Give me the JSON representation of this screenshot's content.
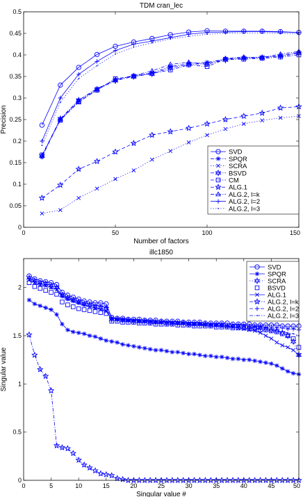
{
  "chart_data": [
    {
      "type": "line",
      "title": "TDM cran_lec",
      "xlabel": "Number of factors",
      "ylabel": "Precision",
      "xlim": [
        0,
        150
      ],
      "ylim": [
        0,
        0.5
      ],
      "xticks": [
        0,
        50,
        100,
        150
      ],
      "yticks": [
        0,
        0.05,
        0.1,
        0.15,
        0.2,
        0.25,
        0.3,
        0.35,
        0.4,
        0.45,
        0.5
      ],
      "xtick_labels": [
        "0",
        "50",
        "100",
        "150"
      ],
      "ytick_labels": [
        "0",
        "0.05",
        "0.1",
        "0.15",
        "0.2",
        "0.25",
        "0.3",
        "0.35",
        "0.4",
        "0.45",
        "0.5"
      ],
      "grid": false,
      "legend_position": "lower-right",
      "color": "#0000ff",
      "x": [
        10,
        20,
        30,
        40,
        50,
        60,
        70,
        80,
        90,
        100,
        110,
        120,
        130,
        140,
        150
      ],
      "series": [
        {
          "name": "SVD",
          "marker": "circle",
          "dash": "solid",
          "values": [
            0.237,
            0.33,
            0.371,
            0.401,
            0.42,
            0.43,
            0.438,
            0.447,
            0.453,
            0.456,
            0.455,
            0.455,
            0.455,
            0.454,
            0.452
          ]
        },
        {
          "name": "SPQR",
          "marker": "star",
          "dash": "dashdot",
          "values": [
            0.163,
            0.25,
            0.295,
            0.322,
            0.342,
            0.352,
            0.358,
            0.373,
            0.38,
            0.383,
            0.39,
            0.394,
            0.395,
            0.398,
            0.406
          ]
        },
        {
          "name": "SCRA",
          "marker": "x",
          "dash": "dotted",
          "values": [
            0.032,
            0.04,
            0.068,
            0.09,
            0.112,
            0.132,
            0.157,
            0.177,
            0.197,
            0.214,
            0.228,
            0.24,
            0.248,
            0.254,
            0.258
          ]
        },
        {
          "name": "BSVD",
          "marker": "hexstar",
          "dash": "dashdot",
          "values": [
            0.165,
            0.252,
            0.295,
            0.32,
            0.34,
            0.35,
            0.356,
            0.37,
            0.378,
            0.38,
            0.388,
            0.392,
            0.394,
            0.397,
            0.404
          ]
        },
        {
          "name": "CM",
          "marker": "square",
          "dash": "dashdot",
          "values": [
            0.168,
            0.248,
            0.292,
            0.318,
            0.345,
            0.35,
            0.357,
            0.365,
            0.377,
            0.373,
            0.39,
            0.39,
            0.392,
            0.395,
            0.4
          ]
        },
        {
          "name": "ALG.1",
          "marker": "pentagram",
          "dash": "dashed",
          "values": [
            0.068,
            0.098,
            0.135,
            0.153,
            0.175,
            0.195,
            0.214,
            0.222,
            0.23,
            0.24,
            0.25,
            0.258,
            0.265,
            0.277,
            0.28
          ]
        },
        {
          "name": "ALG.2, l=k",
          "marker": "triangle",
          "dash": "dashdot",
          "values": [
            0.167,
            0.25,
            0.29,
            0.32,
            0.343,
            0.352,
            0.363,
            0.378,
            0.383,
            0.378,
            0.392,
            0.395,
            0.394,
            0.402,
            0.408
          ]
        },
        {
          "name": "ALG.2, l=2",
          "marker": "plus",
          "dash": "solid",
          "values": [
            0.2,
            0.3,
            0.355,
            0.385,
            0.41,
            0.425,
            0.432,
            0.44,
            0.448,
            0.452,
            0.453,
            0.454,
            0.454,
            0.453,
            0.452
          ]
        },
        {
          "name": "ALG.2, l=3",
          "marker": "dot",
          "dash": "dotted",
          "values": [
            0.19,
            0.29,
            0.345,
            0.375,
            0.402,
            0.418,
            0.428,
            0.437,
            0.443,
            0.448,
            0.45,
            0.451,
            0.451,
            0.45,
            0.449
          ]
        }
      ]
    },
    {
      "type": "line",
      "title": "illc1850",
      "xlabel": "Singular value #",
      "ylabel": "Singular value",
      "xlim": [
        0,
        50
      ],
      "ylim": [
        0,
        2.3
      ],
      "xticks": [
        0,
        5,
        10,
        15,
        20,
        25,
        30,
        35,
        40,
        45,
        50
      ],
      "yticks": [
        0,
        0.5,
        1,
        1.5,
        2
      ],
      "xtick_labels": [
        "0",
        "5",
        "10",
        "15",
        "20",
        "25",
        "30",
        "35",
        "40",
        "45",
        "50"
      ],
      "ytick_labels": [
        "0",
        "0.5",
        "1",
        "1.5",
        "2"
      ],
      "grid": false,
      "legend_position": "top-right",
      "color": "#0000ff",
      "x": [
        1,
        2,
        3,
        4,
        5,
        6,
        7,
        8,
        9,
        10,
        11,
        12,
        13,
        14,
        15,
        16,
        17,
        18,
        19,
        20,
        21,
        22,
        23,
        24,
        25,
        26,
        27,
        28,
        29,
        30,
        31,
        32,
        33,
        34,
        35,
        36,
        37,
        38,
        39,
        40,
        41,
        42,
        43,
        44,
        45,
        46,
        47,
        48,
        49,
        50
      ],
      "series": [
        {
          "name": "SVD",
          "marker": "circle",
          "dash": "solid",
          "values": [
            2.12,
            2.09,
            2.07,
            2.06,
            2.05,
            2.03,
            1.95,
            1.92,
            1.9,
            1.88,
            1.86,
            1.85,
            1.84,
            1.84,
            1.83,
            1.69,
            1.68,
            1.68,
            1.67,
            1.67,
            1.67,
            1.66,
            1.66,
            1.66,
            1.65,
            1.65,
            1.65,
            1.65,
            1.64,
            1.64,
            1.64,
            1.64,
            1.63,
            1.63,
            1.63,
            1.63,
            1.63,
            1.62,
            1.62,
            1.62,
            1.62,
            1.61,
            1.61,
            1.61,
            1.61,
            1.61,
            1.6,
            1.6,
            1.6,
            1.6
          ]
        },
        {
          "name": "SPQR",
          "marker": "star",
          "dash": "solid",
          "values": [
            1.87,
            1.83,
            1.81,
            1.79,
            1.77,
            1.72,
            1.62,
            1.56,
            1.54,
            1.53,
            1.52,
            1.5,
            1.49,
            1.47,
            1.45,
            1.44,
            1.43,
            1.41,
            1.4,
            1.39,
            1.38,
            1.37,
            1.36,
            1.35,
            1.35,
            1.34,
            1.33,
            1.33,
            1.32,
            1.31,
            1.31,
            1.3,
            1.29,
            1.29,
            1.28,
            1.28,
            1.27,
            1.26,
            1.26,
            1.25,
            1.25,
            1.24,
            1.23,
            1.22,
            1.21,
            1.19,
            1.16,
            1.13,
            1.11,
            1.1
          ]
        },
        {
          "name": "SCRA",
          "marker": "hexstar",
          "dash": "dotted",
          "values": [
            2.1,
            2.07,
            2.05,
            2.04,
            2.02,
            2.0,
            1.92,
            1.89,
            1.87,
            1.85,
            1.83,
            1.82,
            1.8,
            1.79,
            1.78,
            1.67,
            1.67,
            1.66,
            1.66,
            1.65,
            1.65,
            1.65,
            1.64,
            1.64,
            1.64,
            1.63,
            1.63,
            1.63,
            1.63,
            1.62,
            1.62,
            1.62,
            1.62,
            1.61,
            1.61,
            1.61,
            1.6,
            1.6,
            1.6,
            1.59,
            1.59,
            1.58,
            1.58,
            1.57,
            1.56,
            1.55,
            1.53,
            1.5,
            1.44,
            1.3
          ]
        },
        {
          "name": "BSVD",
          "marker": "square",
          "dash": "none",
          "values": [
            2.05,
            2.01,
            1.99,
            1.97,
            1.95,
            1.93,
            1.85,
            1.82,
            1.8,
            1.78,
            1.77,
            1.76,
            1.75,
            1.74,
            1.73,
            1.65,
            1.65,
            1.64,
            1.64,
            1.64,
            1.63,
            1.63,
            1.63,
            1.62,
            1.62,
            1.62,
            1.62,
            1.61,
            1.61,
            1.61,
            1.6,
            1.6,
            1.6,
            1.6,
            1.59,
            1.59,
            1.59,
            1.58,
            1.58,
            1.58,
            1.57,
            1.57,
            1.56,
            1.56,
            1.55,
            1.54,
            1.52,
            1.5,
            1.47,
            1.38
          ]
        },
        {
          "name": "ALG.1",
          "marker": "x",
          "dash": "solid",
          "values": [
            2.08,
            2.05,
            2.03,
            2.02,
            2.0,
            1.98,
            1.91,
            1.88,
            1.86,
            1.84,
            1.82,
            1.8,
            1.79,
            1.77,
            1.75,
            1.68,
            1.67,
            1.67,
            1.66,
            1.66,
            1.65,
            1.65,
            1.65,
            1.64,
            1.64,
            1.64,
            1.63,
            1.63,
            1.63,
            1.62,
            1.62,
            1.62,
            1.61,
            1.61,
            1.61,
            1.6,
            1.6,
            1.59,
            1.58,
            1.57,
            1.56,
            1.55,
            1.53,
            1.5,
            1.47,
            1.43,
            1.4,
            1.38,
            1.35,
            1.3
          ]
        },
        {
          "name": "ALG.2, l=k",
          "marker": "pentagram",
          "dash": "dashdot",
          "values": [
            1.51,
            1.3,
            1.15,
            1.08,
            0.93,
            0.36,
            0.34,
            0.33,
            0.28,
            0.21,
            0.16,
            0.13,
            0.1,
            0.07,
            0.06,
            0.05,
            0.02,
            0.01,
            0.0,
            0.0,
            0.0,
            0.0,
            0.0,
            0.0,
            0.0,
            0.0,
            0.0,
            0.0,
            0.0,
            0.0,
            0.0,
            0.0,
            0.0,
            0.0,
            0.0,
            0.0,
            0.0,
            0.0,
            0.0,
            0.0,
            0.0,
            0.0,
            0.0,
            0.0,
            0.0,
            0.0,
            0.0,
            0.0,
            0.0,
            0.0
          ]
        },
        {
          "name": "ALG.2, l=2",
          "marker": "plus",
          "dash": "dashed",
          "values": [
            2.09,
            2.06,
            2.04,
            2.03,
            2.01,
            1.99,
            1.93,
            1.9,
            1.88,
            1.86,
            1.84,
            1.83,
            1.82,
            1.81,
            1.8,
            1.68,
            1.67,
            1.67,
            1.66,
            1.66,
            1.66,
            1.65,
            1.65,
            1.65,
            1.64,
            1.64,
            1.64,
            1.64,
            1.63,
            1.63,
            1.63,
            1.63,
            1.62,
            1.62,
            1.62,
            1.62,
            1.61,
            1.61,
            1.61,
            1.61,
            1.6,
            1.6,
            1.6,
            1.59,
            1.59,
            1.58,
            1.58,
            1.57,
            1.57,
            1.56
          ]
        },
        {
          "name": "ALG.2, l=3",
          "marker": "dot",
          "dash": "dashdot",
          "values": [
            2.07,
            2.04,
            2.02,
            2.01,
            1.99,
            1.97,
            1.9,
            1.87,
            1.85,
            1.83,
            1.81,
            1.8,
            1.79,
            1.78,
            1.76,
            1.66,
            1.66,
            1.65,
            1.65,
            1.65,
            1.64,
            1.64,
            1.64,
            1.63,
            1.63,
            1.63,
            1.63,
            1.62,
            1.62,
            1.62,
            1.61,
            1.61,
            1.61,
            1.61,
            1.6,
            1.6,
            1.6,
            1.59,
            1.59,
            1.59,
            1.58,
            1.58,
            1.57,
            1.57,
            1.56,
            1.55,
            1.54,
            1.53,
            1.52,
            1.5
          ]
        }
      ]
    }
  ]
}
